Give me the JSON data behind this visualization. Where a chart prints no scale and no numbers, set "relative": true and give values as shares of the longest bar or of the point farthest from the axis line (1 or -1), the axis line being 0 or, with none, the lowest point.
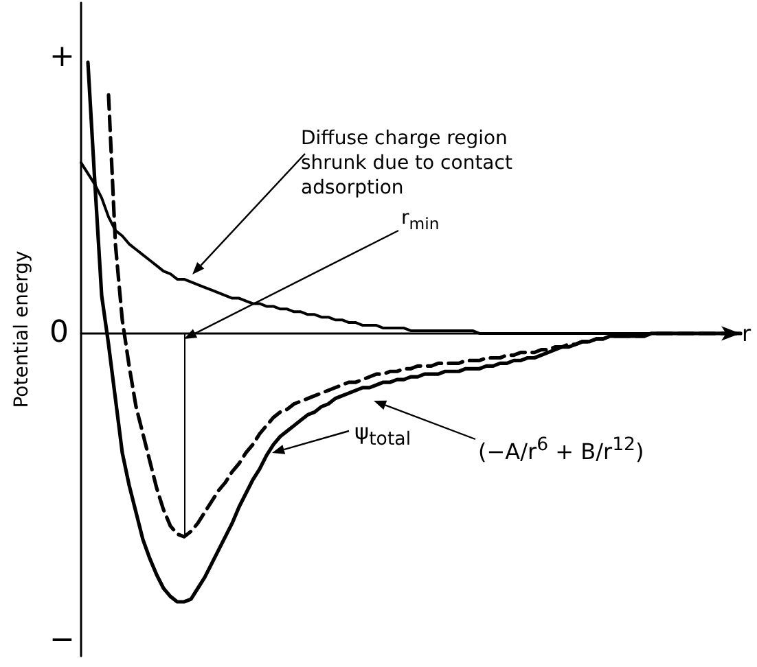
{
  "chart_data": {
    "type": "line",
    "xlabel": "r",
    "ylabel": "Potential energy",
    "relative": true,
    "categories": [
      null,
      null,
      null,
      null,
      null,
      null,
      null,
      null,
      null,
      null,
      null,
      null,
      null,
      null,
      null,
      null,
      null,
      null,
      null,
      null,
      null,
      null,
      null,
      null,
      null,
      null,
      null,
      null,
      null,
      null,
      null,
      null,
      null,
      null,
      null,
      null,
      null,
      null,
      null,
      null,
      null,
      null,
      null,
      null,
      null,
      null,
      null,
      null,
      null,
      null,
      null,
      null,
      null,
      null,
      null,
      null,
      null,
      null,
      null,
      null,
      null,
      null,
      null,
      null,
      null,
      null,
      null,
      null,
      null,
      null,
      null,
      null,
      null,
      null,
      null,
      null,
      null,
      null,
      null,
      null,
      null,
      null,
      null,
      null,
      null,
      null,
      null,
      null,
      null,
      null,
      null,
      null,
      null,
      null,
      null,
      null,
      null
    ],
    "marker": "none",
    "line_style": "solid",
    "series": [
      {
        "color": "#000000",
        "values": [
          0.63,
          0.59,
          0.55,
          0.5,
          0.43,
          0.38,
          0.36,
          0.33,
          0.31,
          0.29,
          0.27,
          0.25,
          0.23,
          0.22,
          0.2,
          0.2,
          0.19,
          0.18,
          0.17,
          0.16,
          0.15,
          0.14,
          0.13,
          0.13,
          0.12,
          0.11,
          0.11,
          0.1,
          0.1,
          0.09,
          0.09,
          0.08,
          0.08,
          0.07,
          0.07,
          0.06,
          0.06,
          0.05,
          0.05,
          0.04,
          0.04,
          0.03,
          0.03,
          0.03,
          0.02,
          0.02,
          0.02,
          0.02,
          0.01,
          0.01,
          0.01,
          0.01,
          0.01,
          0.01,
          0.01,
          0.01,
          0.01,
          0.01,
          0,
          0,
          0,
          0,
          0,
          0,
          0,
          0,
          0,
          0,
          0,
          0,
          0,
          0,
          0,
          0,
          0,
          0,
          0,
          0,
          0,
          0,
          0,
          0,
          0,
          0,
          0,
          0,
          0,
          0,
          0,
          0,
          0,
          0,
          0,
          0,
          0,
          0,
          0
        ]
      },
      {
        "color": "#000000",
        "line_style": "dashed",
        "values": [
          null,
          null,
          null,
          null,
          0.88,
          0.33,
          0.05,
          -0.12,
          -0.27,
          -0.37,
          -0.47,
          -0.57,
          -0.65,
          -0.71,
          -0.74,
          -0.75,
          -0.73,
          -0.7,
          -0.66,
          -0.62,
          -0.58,
          -0.55,
          -0.51,
          -0.48,
          -0.44,
          -0.41,
          -0.37,
          -0.34,
          -0.31,
          -0.29,
          -0.28,
          -0.26,
          -0.25,
          -0.24,
          -0.23,
          -0.22,
          -0.21,
          -0.2,
          -0.19,
          -0.18,
          -0.18,
          -0.17,
          -0.16,
          -0.15,
          -0.15,
          -0.14,
          -0.14,
          -0.13,
          -0.13,
          -0.12,
          -0.12,
          -0.12,
          -0.11,
          -0.11,
          -0.11,
          -0.11,
          -0.1,
          -0.1,
          -0.1,
          -0.09,
          -0.09,
          -0.09,
          -0.08,
          -0.08,
          -0.07,
          -0.07,
          -0.07,
          -0.06,
          -0.06,
          -0.05,
          -0.05,
          -0.04,
          -0.04,
          -0.03,
          -0.03,
          -0.02,
          -0.02,
          -0.01,
          -0.01,
          -0.01,
          -0.01,
          -0.01,
          -0.01,
          0,
          0,
          0,
          0,
          0,
          0,
          0,
          0,
          0,
          0,
          0,
          0,
          0,
          0
        ]
      },
      {
        "color": "#000000",
        "values": [
          null,
          1.0,
          0.56,
          0.14,
          -0.04,
          -0.24,
          -0.44,
          -0.56,
          -0.66,
          -0.76,
          -0.83,
          -0.89,
          -0.94,
          -0.97,
          -0.99,
          -0.99,
          -0.98,
          -0.94,
          -0.9,
          -0.85,
          -0.8,
          -0.75,
          -0.7,
          -0.64,
          -0.59,
          -0.54,
          -0.5,
          -0.45,
          -0.41,
          -0.38,
          -0.36,
          -0.34,
          -0.32,
          -0.3,
          -0.29,
          -0.27,
          -0.26,
          -0.24,
          -0.23,
          -0.22,
          -0.21,
          -0.2,
          -0.2,
          -0.19,
          -0.18,
          -0.18,
          -0.17,
          -0.17,
          -0.16,
          -0.16,
          -0.15,
          -0.15,
          -0.15,
          -0.14,
          -0.14,
          -0.14,
          -0.13,
          -0.13,
          -0.13,
          -0.12,
          -0.12,
          -0.11,
          -0.11,
          -0.1,
          -0.1,
          -0.09,
          -0.09,
          -0.08,
          -0.07,
          -0.06,
          -0.05,
          -0.05,
          -0.04,
          -0.03,
          -0.03,
          -0.02,
          -0.02,
          -0.01,
          -0.01,
          -0.01,
          -0.01,
          -0.01,
          -0.01,
          0,
          0,
          0,
          0,
          0,
          0,
          0,
          0,
          0,
          0,
          0,
          0,
          0,
          0
        ]
      }
    ],
    "annotations": [
      "Diffuse charge region shrunk due to contact adsorption",
      "r$_{min}$",
      "ψ$_{total}$",
      "(−A/r$^{6}$ + B/r$^{12}$)",
      "+",
      "0",
      "−"
    ]
  }
}
